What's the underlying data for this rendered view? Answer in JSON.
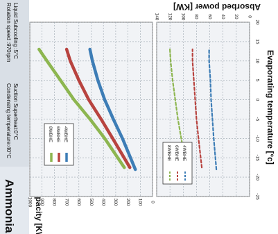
{
  "header": {
    "title": "Ammonia",
    "conditions": [
      "Condensing temperature:40°C",
      "Suction Superheat:0°C",
      "Rotation speed :970rpm",
      "Liquid Subcooling :5°C"
    ]
  },
  "colors": {
    "8WBHE": "#8db650",
    "6WBHE": "#b8433f",
    "4WBHE": "#3d7db6",
    "sidebar": "#e4e9ef",
    "grid": "#9aa4ad",
    "panel_bg": "#f1f3f6"
  },
  "chart_data": [
    {
      "type": "line",
      "panel": "cooling",
      "title": "",
      "xlabel": "Evaporating temperature [°c]",
      "ylabel": "Cooling capacity [KW]",
      "x_ticks": [
        -25,
        -20,
        -15,
        -10,
        -5,
        0,
        5,
        10,
        15,
        20
      ],
      "y_ticks": [
        0,
        100,
        200,
        300,
        400,
        500,
        600,
        700,
        800,
        900,
        1000
      ],
      "xlim": [
        -25,
        20
      ],
      "ylim": [
        0,
        1000
      ],
      "legend": [
        "8WBHE",
        "6WBHE",
        "4WBHE"
      ],
      "series": [
        {
          "name": "8WBHE",
          "x": [
            -17.5,
            -10,
            -5,
            0,
            5,
            10,
            13
          ],
          "y": [
            230,
            390,
            510,
            640,
            750,
            860,
            925
          ]
        },
        {
          "name": "6WBHE",
          "x": [
            -17.5,
            -10,
            -5,
            0,
            5,
            10,
            13
          ],
          "y": [
            185,
            325,
            420,
            520,
            600,
            670,
            700
          ]
        },
        {
          "name": "4WBHE",
          "x": [
            -18,
            -10,
            -5,
            0,
            5,
            10,
            13
          ],
          "y": [
            140,
            245,
            320,
            390,
            445,
            490,
            510
          ]
        }
      ]
    },
    {
      "type": "line",
      "panel": "power",
      "title": "",
      "xlabel": "Evaporating temperature [°c]",
      "ylabel": "Absorbed power [KW]",
      "x_ticks": [
        -25,
        -20,
        -15,
        -10,
        -5,
        0,
        5,
        10,
        15,
        20
      ],
      "y_ticks": [
        0,
        20,
        40,
        60,
        80,
        100,
        120,
        140
      ],
      "xlim": [
        -25,
        20
      ],
      "ylim": [
        0,
        140
      ],
      "legend": [
        "8WBHE",
        "6WBHE",
        "4WBHE"
      ],
      "line_style": "dashed",
      "series": [
        {
          "name": "8WBHE",
          "x": [
            -17.5,
            -10,
            -5,
            0,
            5,
            10,
            13
          ],
          "y": [
            95,
            103,
            108,
            112,
            116,
            119,
            120
          ]
        },
        {
          "name": "6WBHE",
          "x": [
            -17.5,
            -10,
            -5,
            0,
            5,
            10,
            13
          ],
          "y": [
            72,
            77,
            80,
            82,
            84,
            86,
            86
          ]
        },
        {
          "name": "4WBHE",
          "x": [
            -18,
            -10,
            -5,
            0,
            5,
            10,
            13
          ],
          "y": [
            50,
            54,
            56,
            58,
            59,
            61,
            61
          ]
        }
      ]
    }
  ]
}
